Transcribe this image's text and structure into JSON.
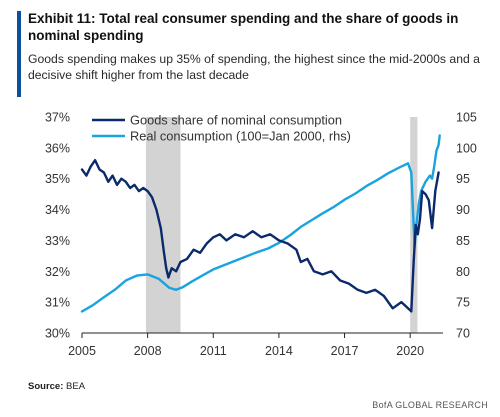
{
  "header": {
    "title": "Exhibit 11: Total real consumer spending and the share of goods in nominal spending",
    "subtitle": "Goods spending makes up 35% of spending, the highest since the mid-2000s and a decisive shift higher from the last decade"
  },
  "footer": {
    "source_label": "Source:",
    "source_value": "BEA",
    "brand": "BofA GLOBAL RESEARCH"
  },
  "colors": {
    "goods": "#0a2a6b",
    "real": "#19a3e0",
    "recession": "#d3d3d3",
    "accent": "#0d4e9e"
  },
  "chart_data": {
    "type": "line",
    "x_range": [
      2005.0,
      2021.5
    ],
    "x_ticks": [
      "2005",
      "2008",
      "2011",
      "2014",
      "2017",
      "2020"
    ],
    "y_left_ticks": [
      "37%",
      "36%",
      "35%",
      "34%",
      "33%",
      "32%",
      "31%",
      "30%"
    ],
    "y_left_range": [
      30,
      37
    ],
    "y_right_ticks": [
      "105",
      "100",
      "95",
      "90",
      "85",
      "80",
      "75",
      "70"
    ],
    "y_right_range": [
      70,
      105
    ],
    "grid": false,
    "legend_position": "top",
    "recessions": [
      [
        2007.92,
        2009.5
      ],
      [
        2020.0,
        2020.33
      ]
    ],
    "series": [
      {
        "name": "Goods share of nominal consumption",
        "axis": "left",
        "x": [
          2005.0,
          2005.2,
          2005.4,
          2005.6,
          2005.8,
          2006.0,
          2006.2,
          2006.4,
          2006.6,
          2006.8,
          2007.0,
          2007.2,
          2007.4,
          2007.6,
          2007.8,
          2008.0,
          2008.2,
          2008.4,
          2008.6,
          2008.75,
          2008.85,
          2008.95,
          2009.1,
          2009.3,
          2009.5,
          2009.8,
          2010.1,
          2010.4,
          2010.7,
          2011.0,
          2011.3,
          2011.6,
          2012.0,
          2012.4,
          2012.8,
          2013.2,
          2013.6,
          2014.0,
          2014.4,
          2014.8,
          2015.0,
          2015.3,
          2015.6,
          2016.0,
          2016.4,
          2016.8,
          2017.2,
          2017.6,
          2018.0,
          2018.4,
          2018.8,
          2019.2,
          2019.6,
          2019.9,
          2020.05,
          2020.15,
          2020.25,
          2020.35,
          2020.45,
          2020.55,
          2020.7,
          2020.85,
          2021.0,
          2021.15,
          2021.3
        ],
        "values": [
          35.3,
          35.1,
          35.4,
          35.6,
          35.3,
          35.2,
          34.9,
          35.1,
          34.8,
          35.0,
          34.9,
          34.7,
          34.8,
          34.6,
          34.7,
          34.6,
          34.4,
          34.0,
          33.4,
          32.6,
          32.1,
          31.8,
          32.1,
          32.0,
          32.3,
          32.4,
          32.7,
          32.6,
          32.9,
          33.1,
          33.2,
          33.0,
          33.2,
          33.1,
          33.3,
          33.1,
          33.2,
          33.0,
          32.9,
          32.7,
          32.3,
          32.4,
          32.0,
          31.9,
          32.0,
          31.7,
          31.6,
          31.4,
          31.3,
          31.4,
          31.2,
          30.8,
          31.0,
          30.8,
          30.7,
          32.2,
          33.5,
          33.2,
          33.7,
          34.6,
          34.5,
          34.3,
          33.4,
          34.6,
          35.2
        ]
      },
      {
        "name": "Real consumption (100=Jan 2000, rhs)",
        "axis": "right",
        "x": [
          2005.0,
          2005.5,
          2006.0,
          2006.5,
          2007.0,
          2007.5,
          2008.0,
          2008.5,
          2009.0,
          2009.3,
          2009.6,
          2010.0,
          2010.5,
          2011.0,
          2011.5,
          2012.0,
          2012.5,
          2013.0,
          2013.5,
          2014.0,
          2014.5,
          2015.0,
          2015.5,
          2016.0,
          2016.5,
          2017.0,
          2017.5,
          2018.0,
          2018.5,
          2019.0,
          2019.5,
          2019.9,
          2020.05,
          2020.2,
          2020.3,
          2020.4,
          2020.5,
          2020.7,
          2020.9,
          2021.0,
          2021.1,
          2021.2,
          2021.3,
          2021.35
        ],
        "values": [
          73.5,
          74.5,
          75.8,
          77.0,
          78.5,
          79.3,
          79.5,
          78.8,
          77.3,
          77.0,
          77.4,
          78.3,
          79.3,
          80.3,
          81.0,
          81.7,
          82.4,
          83.1,
          83.7,
          84.6,
          85.8,
          87.2,
          88.3,
          89.4,
          90.4,
          91.6,
          92.6,
          93.8,
          94.8,
          95.9,
          96.8,
          97.5,
          96.0,
          84.0,
          88.0,
          91.0,
          93.0,
          94.5,
          95.5,
          95.0,
          97.0,
          99.5,
          100.5,
          102.0
        ]
      }
    ]
  }
}
